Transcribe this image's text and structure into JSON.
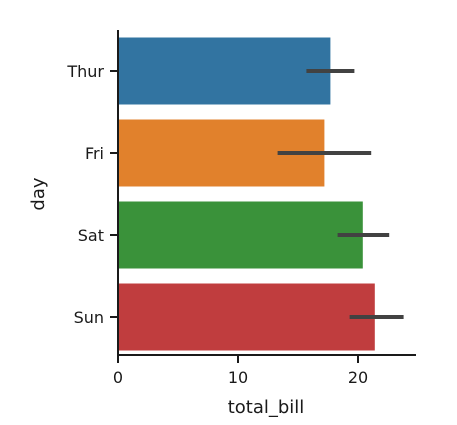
{
  "chart_data": {
    "type": "bar",
    "orientation": "horizontal",
    "xlabel": "total_bill",
    "ylabel": "day",
    "xlim": [
      0,
      25
    ],
    "x_ticks": [
      0,
      10,
      20
    ],
    "x_tick_labels": [
      "0",
      "10",
      "20"
    ],
    "categories": [
      "Thur",
      "Fri",
      "Sat",
      "Sun"
    ],
    "values": [
      17.7,
      17.2,
      20.4,
      21.4
    ],
    "ci_low": [
      15.7,
      13.3,
      18.3,
      19.3
    ],
    "ci_high": [
      19.7,
      21.1,
      22.6,
      23.8
    ],
    "colors": [
      "#3274a1",
      "#e1812c",
      "#3a923a",
      "#c03d3e"
    ],
    "errorbar_color": "#424242",
    "grid": false,
    "legend": "none"
  }
}
